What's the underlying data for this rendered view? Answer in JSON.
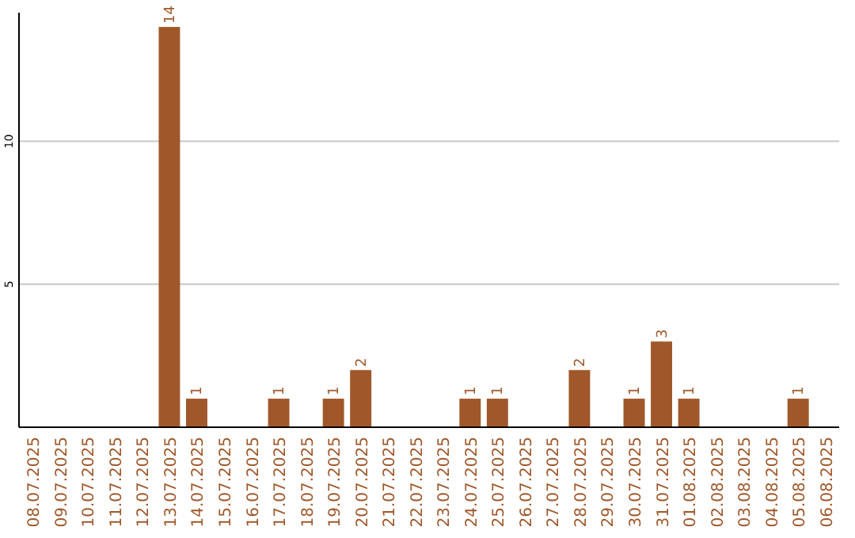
{
  "chart_data": {
    "type": "bar",
    "categories": [
      "08.07.2025",
      "09.07.2025",
      "10.07.2025",
      "11.07.2025",
      "12.07.2025",
      "13.07.2025",
      "14.07.2025",
      "15.07.2025",
      "16.07.2025",
      "17.07.2025",
      "18.07.2025",
      "19.07.2025",
      "20.07.2025",
      "21.07.2025",
      "22.07.2025",
      "23.07.2025",
      "24.07.2025",
      "25.07.2025",
      "26.07.2025",
      "27.07.2025",
      "28.07.2025",
      "29.07.2025",
      "30.07.2025",
      "31.07.2025",
      "01.08.2025",
      "02.08.2025",
      "03.08.2025",
      "04.08.2025",
      "05.08.2025",
      "06.08.2025"
    ],
    "values": [
      0,
      0,
      0,
      0,
      0,
      14,
      1,
      0,
      0,
      1,
      0,
      1,
      2,
      0,
      0,
      0,
      1,
      1,
      0,
      0,
      2,
      0,
      1,
      3,
      1,
      0,
      0,
      0,
      1,
      0
    ],
    "value_labels": [
      null,
      null,
      null,
      null,
      null,
      "14",
      "1",
      null,
      null,
      "1",
      null,
      "1",
      "2",
      null,
      null,
      null,
      "1",
      "1",
      null,
      null,
      "2",
      null,
      "1",
      "3",
      "1",
      null,
      null,
      null,
      "1",
      null
    ],
    "color": "#a0582a",
    "ylim": [
      0,
      14.5
    ],
    "yticks": [
      5,
      10
    ],
    "grid": "y"
  }
}
